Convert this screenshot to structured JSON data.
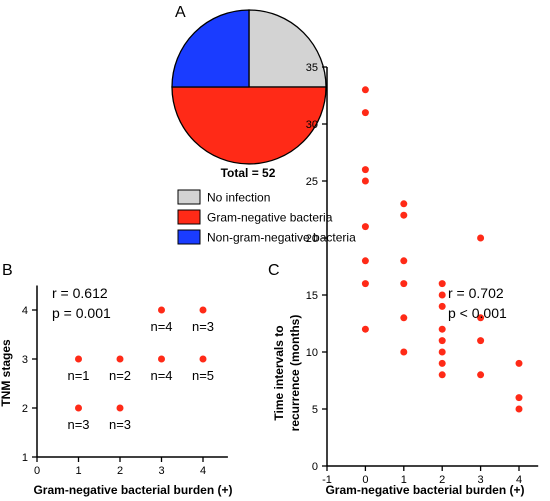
{
  "chart_data": [
    {
      "panel": "A",
      "type": "pie",
      "categories": [
        "No infection",
        "Gram-negative bacteria",
        "Non-gram-negative bacteria"
      ],
      "values": [
        13,
        26,
        13
      ],
      "colors": [
        "#d3d3d3",
        "#ff2a17",
        "#1a3cff"
      ],
      "total_label": "Total = 52",
      "legend": [
        {
          "label": "No infection",
          "color": "#d3d3d3"
        },
        {
          "label": "Gram-negative bacteria",
          "color": "#ff2a17"
        },
        {
          "label": "Non-gram-negative bacteria",
          "color": "#1a3cff"
        }
      ]
    },
    {
      "panel": "B",
      "type": "scatter",
      "xlabel": "Gram-negative bacterial burden (+)",
      "ylabel": "TNM stages",
      "xlim": [
        0,
        4.6
      ],
      "ylim": [
        1,
        4.5
      ],
      "xticks": [
        0,
        1,
        2,
        3,
        4
      ],
      "yticks": [
        1,
        2,
        3,
        4
      ],
      "points": [
        {
          "x": 1,
          "y": 3,
          "label": "n=1"
        },
        {
          "x": 1,
          "y": 2,
          "label": "n=3"
        },
        {
          "x": 2,
          "y": 3,
          "label": "n=2"
        },
        {
          "x": 2,
          "y": 2,
          "label": "n=3"
        },
        {
          "x": 3,
          "y": 4,
          "label": "n=4"
        },
        {
          "x": 3,
          "y": 3,
          "label": "n=4"
        },
        {
          "x": 4,
          "y": 4,
          "label": "n=3"
        },
        {
          "x": 4,
          "y": 3,
          "label": "n=5"
        }
      ],
      "stats": [
        "r = 0.612",
        "p = 0.001"
      ],
      "color": "#ff2a17"
    },
    {
      "panel": "C",
      "type": "scatter",
      "xlabel": "Gram-negative bacterial burden (+)",
      "ylabel": "Time intervals to recurrence (months)",
      "ylabel_lines": [
        "Time intervals to",
        "recurrence (months)"
      ],
      "xlim": [
        -1,
        4.5
      ],
      "ylim": [
        0,
        35
      ],
      "xticks": [
        -1,
        0,
        1,
        2,
        3,
        4
      ],
      "yticks": [
        0,
        5,
        10,
        15,
        20,
        25,
        30,
        35
      ],
      "points": [
        {
          "x": 0,
          "y": 33
        },
        {
          "x": 0,
          "y": 31
        },
        {
          "x": 0,
          "y": 26
        },
        {
          "x": 0,
          "y": 25
        },
        {
          "x": 0,
          "y": 21
        },
        {
          "x": 0,
          "y": 18
        },
        {
          "x": 0,
          "y": 16
        },
        {
          "x": 0,
          "y": 12
        },
        {
          "x": 1,
          "y": 23
        },
        {
          "x": 1,
          "y": 22
        },
        {
          "x": 1,
          "y": 18
        },
        {
          "x": 1,
          "y": 16
        },
        {
          "x": 1,
          "y": 13
        },
        {
          "x": 1,
          "y": 10
        },
        {
          "x": 2,
          "y": 16
        },
        {
          "x": 2,
          "y": 15
        },
        {
          "x": 2,
          "y": 14
        },
        {
          "x": 2,
          "y": 12
        },
        {
          "x": 2,
          "y": 11
        },
        {
          "x": 2,
          "y": 10
        },
        {
          "x": 2,
          "y": 9
        },
        {
          "x": 2,
          "y": 8
        },
        {
          "x": 3,
          "y": 20
        },
        {
          "x": 3,
          "y": 13
        },
        {
          "x": 3,
          "y": 11
        },
        {
          "x": 3,
          "y": 8
        },
        {
          "x": 4,
          "y": 9
        },
        {
          "x": 4,
          "y": 6
        },
        {
          "x": 4,
          "y": 5
        }
      ],
      "stats": [
        "r = 0.702",
        "p < 0.001"
      ],
      "color": "#ff2a17"
    }
  ]
}
